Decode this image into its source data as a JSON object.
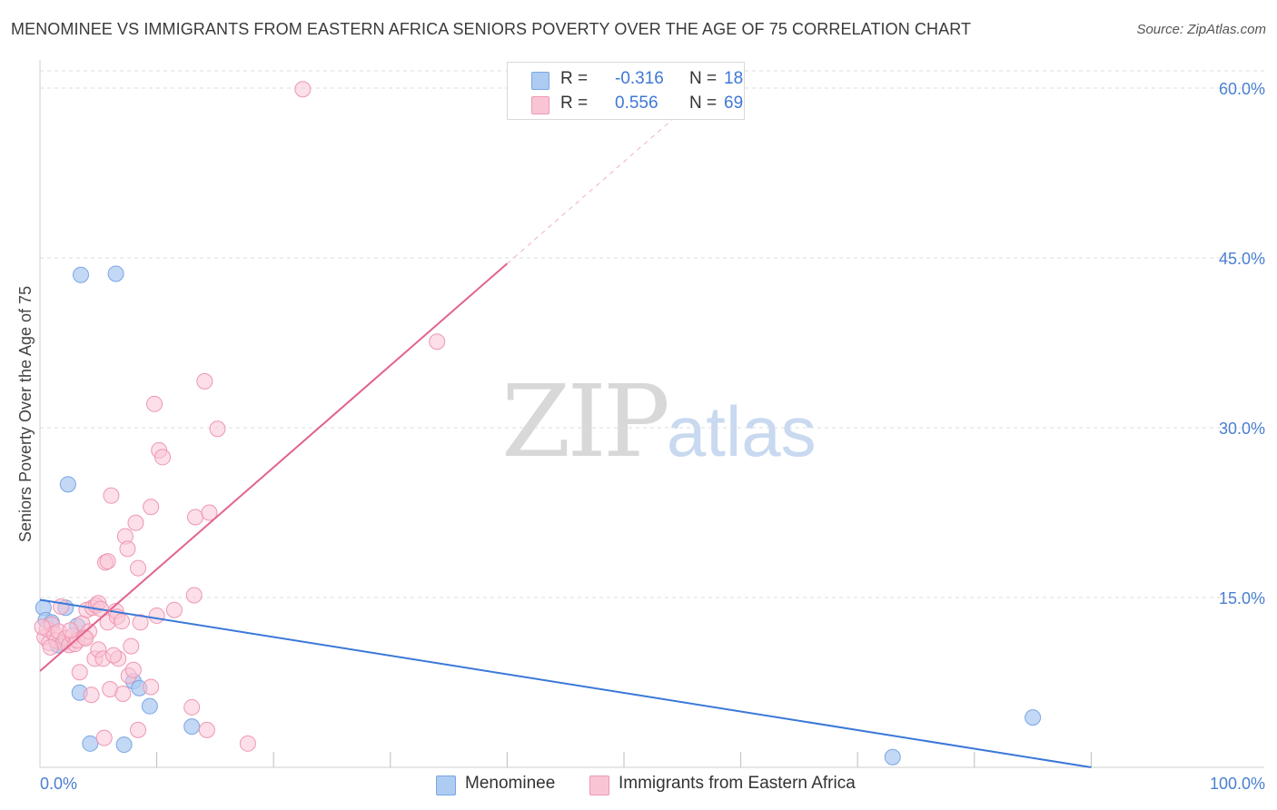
{
  "title": "MENOMINEE VS IMMIGRANTS FROM EASTERN AFRICA SENIORS POVERTY OVER THE AGE OF 75 CORRELATION CHART",
  "source": "Source: ZipAtlas.com",
  "watermark": {
    "zip": "ZIP",
    "atlas": "atlas"
  },
  "legend": {
    "rows": [
      {
        "r_label": "R =",
        "r_value": "-0.316",
        "n_label": "N =",
        "n_value": "18",
        "color": "#aecbf2",
        "border": "#7aa6e3"
      },
      {
        "r_label": "R =",
        "r_value": "0.556",
        "n_label": "N =",
        "n_value": "69",
        "color": "#f9c5d5",
        "border": "#ee97b2"
      }
    ]
  },
  "bottom_legend": [
    {
      "label": "Menominee",
      "color": "#aecbf2",
      "border": "#7aa6e3"
    },
    {
      "label": "Immigrants from Eastern Africa",
      "color": "#f9c5d5",
      "border": "#ee97b2"
    }
  ],
  "chart_data": {
    "type": "scatter",
    "xlabel": "",
    "ylabel": "Seniors Poverty Over the Age of 75",
    "xlim": [
      0,
      100
    ],
    "ylim": [
      0,
      62
    ],
    "x_tick_labels": [
      "0.0%",
      "100.0%"
    ],
    "y_ticks": [
      15,
      30,
      45,
      60
    ],
    "y_tick_labels": [
      "15.0%",
      "30.0%",
      "45.0%",
      "60.0%"
    ],
    "series": [
      {
        "name": "Menominee",
        "color": "#7aa6e3",
        "fill": "#aecbf2",
        "trend_color": "#3a78d8",
        "trend": {
          "x0": 0,
          "y0": 14.8,
          "x1": 90,
          "y1": 0.0,
          "dashed_from": null
        },
        "points": [
          {
            "x": 0.3,
            "y": 14.1
          },
          {
            "x": 0.5,
            "y": 13.0
          },
          {
            "x": 1.0,
            "y": 12.8
          },
          {
            "x": 1.5,
            "y": 10.8
          },
          {
            "x": 2.2,
            "y": 14.1
          },
          {
            "x": 2.4,
            "y": 25.0
          },
          {
            "x": 3.2,
            "y": 12.5
          },
          {
            "x": 3.4,
            "y": 6.6
          },
          {
            "x": 3.5,
            "y": 43.5
          },
          {
            "x": 4.3,
            "y": 2.1
          },
          {
            "x": 6.5,
            "y": 43.6
          },
          {
            "x": 7.2,
            "y": 2.0
          },
          {
            "x": 8.0,
            "y": 7.6
          },
          {
            "x": 8.5,
            "y": 7.0
          },
          {
            "x": 9.4,
            "y": 5.4
          },
          {
            "x": 13.0,
            "y": 3.6
          },
          {
            "x": 73.0,
            "y": 0.9
          },
          {
            "x": 85.0,
            "y": 4.4
          }
        ]
      },
      {
        "name": "Immigrants from Eastern Africa",
        "color": "#ee97b2",
        "fill": "#f9c5d5",
        "trend_color": "#e2638c",
        "trend": {
          "x0": 0,
          "y0": 8.5,
          "x1": 40,
          "y1": 44.5,
          "dashed_to_x": 55,
          "dashed_to_y": 58.0
        },
        "points": [
          {
            "x": 0.4,
            "y": 11.5
          },
          {
            "x": 0.6,
            "y": 12.2
          },
          {
            "x": 0.8,
            "y": 11.0
          },
          {
            "x": 1.0,
            "y": 12.6
          },
          {
            "x": 1.2,
            "y": 11.8
          },
          {
            "x": 1.4,
            "y": 11.2
          },
          {
            "x": 1.6,
            "y": 12.0
          },
          {
            "x": 1.8,
            "y": 14.2
          },
          {
            "x": 2.0,
            "y": 11.0
          },
          {
            "x": 2.2,
            "y": 11.4
          },
          {
            "x": 2.5,
            "y": 10.8
          },
          {
            "x": 2.8,
            "y": 11.6
          },
          {
            "x": 3.0,
            "y": 10.9
          },
          {
            "x": 3.2,
            "y": 11.2
          },
          {
            "x": 3.4,
            "y": 8.4
          },
          {
            "x": 3.6,
            "y": 12.7
          },
          {
            "x": 3.8,
            "y": 11.5
          },
          {
            "x": 4.0,
            "y": 13.9
          },
          {
            "x": 4.2,
            "y": 12.0
          },
          {
            "x": 4.4,
            "y": 6.4
          },
          {
            "x": 4.5,
            "y": 14.1
          },
          {
            "x": 4.7,
            "y": 9.6
          },
          {
            "x": 4.8,
            "y": 14.3
          },
          {
            "x": 5.0,
            "y": 10.4
          },
          {
            "x": 5.0,
            "y": 14.5
          },
          {
            "x": 5.2,
            "y": 14.0
          },
          {
            "x": 5.4,
            "y": 9.6
          },
          {
            "x": 5.5,
            "y": 2.6
          },
          {
            "x": 5.6,
            "y": 18.1
          },
          {
            "x": 5.8,
            "y": 18.2
          },
          {
            "x": 5.8,
            "y": 12.8
          },
          {
            "x": 6.0,
            "y": 6.9
          },
          {
            "x": 6.1,
            "y": 24.0
          },
          {
            "x": 6.5,
            "y": 13.8
          },
          {
            "x": 6.6,
            "y": 13.3
          },
          {
            "x": 6.7,
            "y": 9.6
          },
          {
            "x": 7.0,
            "y": 12.9
          },
          {
            "x": 7.1,
            "y": 6.5
          },
          {
            "x": 7.3,
            "y": 20.4
          },
          {
            "x": 7.5,
            "y": 19.3
          },
          {
            "x": 7.6,
            "y": 8.1
          },
          {
            "x": 7.8,
            "y": 10.7
          },
          {
            "x": 8.0,
            "y": 8.6
          },
          {
            "x": 8.2,
            "y": 21.6
          },
          {
            "x": 8.4,
            "y": 17.6
          },
          {
            "x": 8.4,
            "y": 3.3
          },
          {
            "x": 8.6,
            "y": 12.8
          },
          {
            "x": 9.5,
            "y": 23.0
          },
          {
            "x": 9.5,
            "y": 7.1
          },
          {
            "x": 9.8,
            "y": 32.1
          },
          {
            "x": 10.0,
            "y": 13.4
          },
          {
            "x": 10.2,
            "y": 28.0
          },
          {
            "x": 10.5,
            "y": 27.4
          },
          {
            "x": 11.5,
            "y": 13.9
          },
          {
            "x": 13.0,
            "y": 5.3
          },
          {
            "x": 13.2,
            "y": 15.2
          },
          {
            "x": 13.3,
            "y": 22.1
          },
          {
            "x": 14.1,
            "y": 34.1
          },
          {
            "x": 14.3,
            "y": 3.3
          },
          {
            "x": 14.5,
            "y": 22.5
          },
          {
            "x": 15.2,
            "y": 29.9
          },
          {
            "x": 17.8,
            "y": 2.1
          },
          {
            "x": 22.5,
            "y": 59.9
          },
          {
            "x": 34.0,
            "y": 37.6
          },
          {
            "x": 0.2,
            "y": 12.4
          },
          {
            "x": 0.9,
            "y": 10.6
          },
          {
            "x": 2.6,
            "y": 12.1
          },
          {
            "x": 3.9,
            "y": 11.4
          },
          {
            "x": 6.3,
            "y": 9.9
          }
        ]
      }
    ]
  }
}
